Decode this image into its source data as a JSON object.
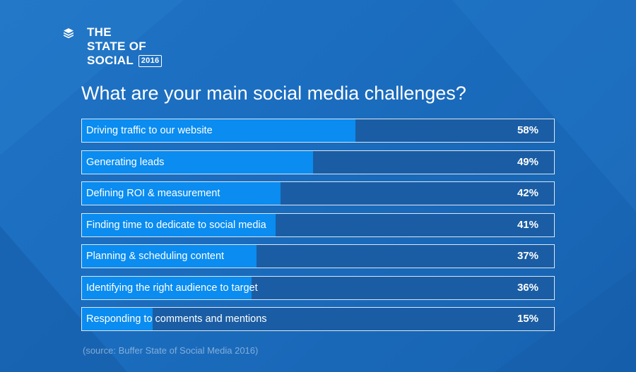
{
  "brand": {
    "line1": "THE",
    "line2": "STATE OF",
    "line3": "SOCIAL",
    "year": "2016",
    "logo_icon": "layers-icon"
  },
  "chart_data": {
    "type": "bar",
    "title": "What are your main social media challenges?",
    "categories": [
      "Driving traffic to our website",
      "Generating leads",
      "Defining ROI & measurement",
      "Finding time to dedicate to social media",
      "Planning & scheduling content",
      "Identifying the right audience to target",
      "Responding to comments and mentions"
    ],
    "values": [
      58,
      49,
      42,
      41,
      37,
      36,
      15
    ],
    "value_labels": [
      "58%",
      "49%",
      "42%",
      "41%",
      "37%",
      "36%",
      "15%"
    ],
    "xlim": [
      0,
      100
    ],
    "orientation": "horizontal",
    "bar_color": "#0a8cf0",
    "track_color": "#1a5da4"
  },
  "source": "(source: Buffer State of Social Media 2016)"
}
